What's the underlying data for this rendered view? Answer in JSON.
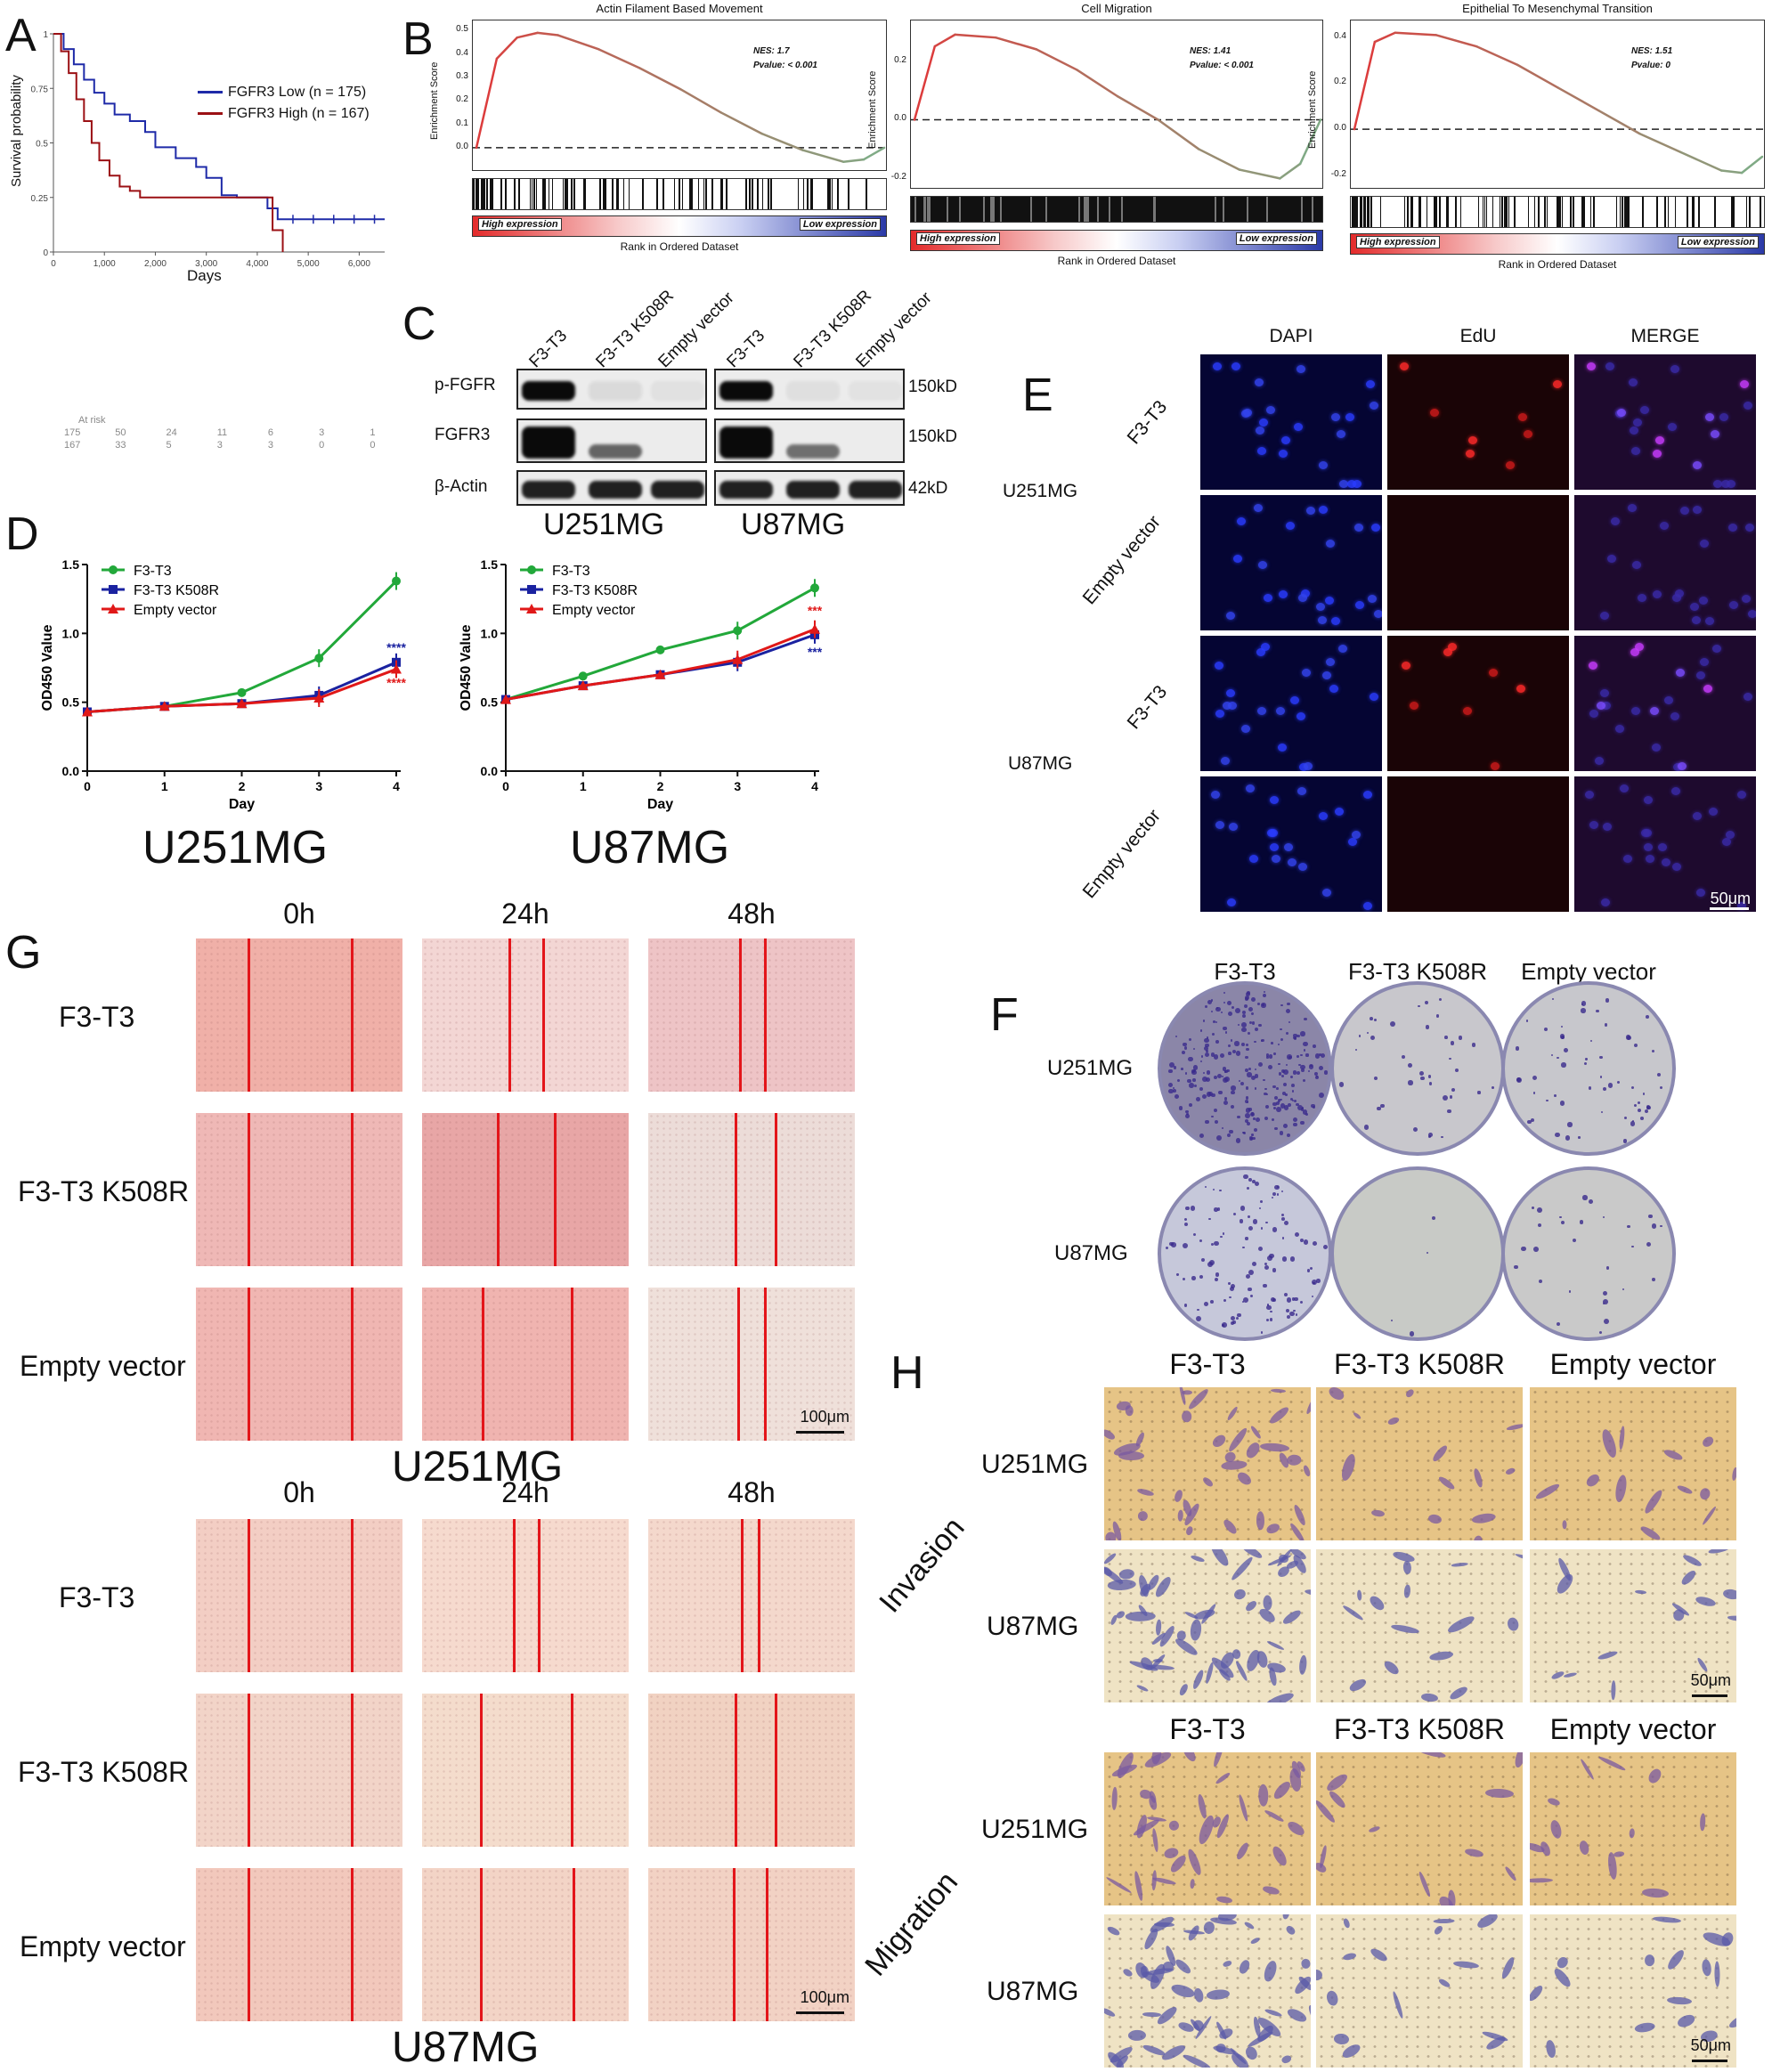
{
  "panel_labels": {
    "A": "A",
    "B": "B",
    "C": "C",
    "D": "D",
    "E": "E",
    "F": "F",
    "G": "G",
    "H": "H"
  },
  "panelA": {
    "ylabel": "Survival probability",
    "xlabel": "Days",
    "yticks": [
      "0",
      "0.25",
      "0.5",
      "0.75",
      "1"
    ],
    "xticks": [
      "0",
      "1,000",
      "2,000",
      "3,000",
      "4,000",
      "5,000",
      "6,000"
    ],
    "legend": [
      {
        "label": "FGFR3 Low (n = 175)",
        "color": "#1e2aa8"
      },
      {
        "label": "FGFR3 High (n = 167)",
        "color": "#9b1014"
      }
    ],
    "at_risk_label": "At risk",
    "at_risk_low": [
      "175",
      "50",
      "24",
      "11",
      "6",
      "3",
      "1"
    ],
    "at_risk_high": [
      "167",
      "33",
      "5",
      "3",
      "3",
      "0",
      "0"
    ]
  },
  "chart_data": [
    {
      "type": "line",
      "title": "",
      "xlabel": "Days",
      "ylabel": "Survival probability",
      "xlim": [
        0,
        6500
      ],
      "ylim": [
        0,
        1
      ],
      "series": [
        {
          "name": "FGFR3 Low (n = 175)",
          "color": "#1e2aa8",
          "x": [
            0,
            200,
            400,
            600,
            800,
            1000,
            1200,
            1500,
            1800,
            2000,
            2400,
            2800,
            3000,
            3300,
            3600,
            4200,
            4400,
            5000,
            6000,
            6500
          ],
          "y": [
            1,
            0.93,
            0.86,
            0.79,
            0.73,
            0.68,
            0.63,
            0.6,
            0.55,
            0.48,
            0.43,
            0.39,
            0.34,
            0.26,
            0.25,
            0.2,
            0.15,
            0.15,
            0.15,
            0.15
          ]
        },
        {
          "name": "FGFR3 High (n = 167)",
          "color": "#9b1014",
          "x": [
            0,
            150,
            300,
            450,
            600,
            750,
            900,
            1100,
            1300,
            1500,
            1700,
            2000,
            2500,
            3000,
            3500,
            4000,
            4300,
            4500
          ],
          "y": [
            1,
            0.92,
            0.82,
            0.7,
            0.6,
            0.5,
            0.42,
            0.35,
            0.3,
            0.28,
            0.25,
            0.25,
            0.25,
            0.25,
            0.25,
            0.25,
            0.1,
            0
          ]
        }
      ]
    },
    {
      "type": "line",
      "title": "Actin Filament Based Movement",
      "xlabel": "Rank in Ordered Dataset",
      "ylabel": "Enrichment Score",
      "annotation": [
        "NES: 1.7",
        "Pvalue: < 0.001"
      ],
      "yticks": [
        "0.0",
        "0.1",
        "0.2",
        "0.3",
        "0.4",
        "0.5"
      ],
      "series": [
        {
          "name": "",
          "x": [
            0,
            5,
            10,
            15,
            20,
            30,
            40,
            50,
            60,
            70,
            80,
            90,
            95,
            100
          ],
          "y": [
            0,
            0.38,
            0.47,
            0.49,
            0.48,
            0.42,
            0.34,
            0.25,
            0.15,
            0.06,
            -0.01,
            -0.06,
            -0.05,
            0
          ]
        }
      ]
    },
    {
      "type": "line",
      "title": "Cell Migration",
      "xlabel": "Rank in Ordered Dataset",
      "ylabel": "Enrichment Score",
      "annotation": [
        "NES: 1.41",
        "Pvalue: < 0.001"
      ],
      "yticks": [
        "-0.2",
        "0.0",
        "0.2"
      ],
      "series": [
        {
          "name": "",
          "x": [
            0,
            5,
            10,
            20,
            30,
            40,
            50,
            60,
            70,
            80,
            90,
            95,
            100
          ],
          "y": [
            0,
            0.25,
            0.29,
            0.28,
            0.24,
            0.17,
            0.08,
            0.0,
            -0.1,
            -0.17,
            -0.2,
            -0.15,
            0
          ]
        }
      ]
    },
    {
      "type": "line",
      "title": "Epithelial To Mesenchymal Transition",
      "xlabel": "Rank in Ordered Dataset",
      "ylabel": "Enrichment Score",
      "annotation": [
        "NES: 1.51",
        "Pvalue: 0"
      ],
      "yticks": [
        "-0.2",
        "0.0",
        "0.2",
        "0.4"
      ],
      "series": [
        {
          "name": "",
          "x": [
            0,
            5,
            10,
            20,
            30,
            40,
            50,
            60,
            70,
            80,
            90,
            95,
            100
          ],
          "y": [
            0,
            0.38,
            0.42,
            0.41,
            0.36,
            0.28,
            0.18,
            0.08,
            -0.02,
            -0.1,
            -0.18,
            -0.19,
            -0.12
          ]
        }
      ]
    },
    {
      "type": "line",
      "title": "U251MG",
      "xlabel": "Day",
      "ylabel": "OD450 Value",
      "ylim": [
        0,
        1.5
      ],
      "x": [
        0,
        1,
        2,
        3,
        4
      ],
      "series": [
        {
          "name": "F3-T3",
          "color": "#22a83a",
          "values": [
            0.43,
            0.47,
            0.57,
            0.82,
            1.38
          ]
        },
        {
          "name": "F3-T3 K508R",
          "color": "#1a22a0",
          "values": [
            0.43,
            0.47,
            0.49,
            0.55,
            0.79
          ]
        },
        {
          "name": "Empty vector",
          "color": "#e01818",
          "values": [
            0.43,
            0.47,
            0.49,
            0.53,
            0.74
          ]
        }
      ],
      "annotations": [
        {
          "text": "****",
          "color": "#1a22a0"
        },
        {
          "text": "****",
          "color": "#e01818"
        }
      ]
    },
    {
      "type": "line",
      "title": "U87MG",
      "xlabel": "Day",
      "ylabel": "OD450 Value",
      "ylim": [
        0,
        1.5
      ],
      "x": [
        0,
        1,
        2,
        3,
        4
      ],
      "series": [
        {
          "name": "F3-T3",
          "color": "#22a83a",
          "values": [
            0.52,
            0.69,
            0.88,
            1.02,
            1.33
          ]
        },
        {
          "name": "F3-T3 K508R",
          "color": "#1a22a0",
          "values": [
            0.52,
            0.62,
            0.7,
            0.79,
            0.99
          ]
        },
        {
          "name": "Empty vector",
          "color": "#e01818",
          "values": [
            0.52,
            0.62,
            0.7,
            0.81,
            1.03
          ]
        }
      ],
      "annotations": [
        {
          "text": "***",
          "color": "#e01818"
        },
        {
          "text": "***",
          "color": "#1a22a0"
        }
      ]
    }
  ],
  "panelB": {
    "tags": {
      "high": "High expression",
      "low": "Low expression"
    }
  },
  "panelC": {
    "lanes": [
      "F3-T3",
      "F3-T3 K508R",
      "Empty vector",
      "F3-T3",
      "F3-T3 K508R",
      "Empty vector"
    ],
    "rows": [
      "p-FGFR",
      "FGFR3",
      "β-Actin"
    ],
    "sizes": [
      "150kD",
      "150kD",
      "42kD"
    ],
    "cells": [
      "U251MG",
      "U87MG"
    ]
  },
  "panelD": {
    "ylabel": "OD450 Value",
    "xlabel": "Day",
    "yticks": [
      "0.0",
      "0.5",
      "1.0",
      "1.5"
    ],
    "xticks": [
      "0",
      "1",
      "2",
      "3",
      "4"
    ],
    "legend": [
      "F3-T3",
      "F3-T3 K508R",
      "Empty vector"
    ],
    "titles": [
      "U251MG",
      "U87MG"
    ]
  },
  "panelE": {
    "cols": [
      "DAPI",
      "EdU",
      "MERGE"
    ],
    "rows": [
      "F3-T3",
      "Empty vector",
      "F3-T3",
      "Empty vector"
    ],
    "cells": [
      "U251MG",
      "U87MG"
    ],
    "scale": "50μm"
  },
  "panelF": {
    "cols": [
      "F3-T3",
      "F3-T3 K508R",
      "Empty vector"
    ],
    "rows": [
      "U251MG",
      "U87MG"
    ]
  },
  "panelG": {
    "times": [
      "0h",
      "24h",
      "48h"
    ],
    "rows": [
      "F3-T3",
      "F3-T3 K508R",
      "Empty vector"
    ],
    "cells": [
      "U251MG",
      "U87MG"
    ],
    "scale": "100μm"
  },
  "panelH": {
    "cols": [
      "F3-T3",
      "F3-T3 K508R",
      "Empty vector"
    ],
    "rows": [
      "U251MG",
      "U87MG"
    ],
    "groups": [
      "Invasion",
      "Migration"
    ],
    "scale": "50μm"
  }
}
